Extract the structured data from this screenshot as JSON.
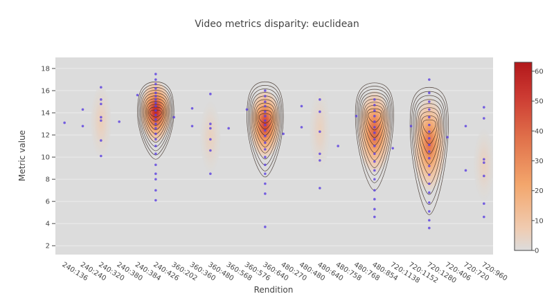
{
  "chart_data": {
    "type": "heatmap",
    "title": "Video metrics disparity: euclidean",
    "xlabel": "Rendition",
    "ylabel": "Metric value",
    "ylim": [
      1.2,
      19
    ],
    "yticks": [
      2,
      4,
      6,
      8,
      10,
      12,
      14,
      16,
      18
    ],
    "categories": [
      "240:136",
      "240:240",
      "240:320",
      "240:380",
      "240:384",
      "240:426",
      "360:202",
      "360:360",
      "360:480",
      "360:568",
      "360:576",
      "360:640",
      "480:270",
      "480:480",
      "480:640",
      "480:758",
      "480:768",
      "480:854",
      "720:1138",
      "720:1152",
      "720:1280",
      "720:406",
      "720:720",
      "720:960"
    ],
    "colorbar": {
      "min": 0,
      "max": 63,
      "ticks": [
        0,
        10,
        20,
        30,
        40,
        50,
        60
      ]
    },
    "points": [
      [
        0.5,
        13.1
      ],
      [
        1.5,
        12.8
      ],
      [
        1.5,
        14.3
      ],
      [
        2.5,
        10.1
      ],
      [
        2.5,
        11.5
      ],
      [
        2.5,
        13.3
      ],
      [
        2.5,
        13.6
      ],
      [
        2.5,
        14.8
      ],
      [
        2.5,
        15.2
      ],
      [
        2.5,
        16.3
      ],
      [
        3.5,
        13.2
      ],
      [
        4.5,
        15.6
      ],
      [
        5.5,
        6.1
      ],
      [
        5.5,
        7.0
      ],
      [
        5.5,
        8.0
      ],
      [
        5.5,
        8.5
      ],
      [
        5.5,
        9.3
      ],
      [
        5.5,
        10.3
      ],
      [
        5.5,
        11.0
      ],
      [
        5.5,
        11.6
      ],
      [
        5.5,
        12.1
      ],
      [
        5.5,
        12.6
      ],
      [
        5.5,
        13.0
      ],
      [
        5.5,
        13.4
      ],
      [
        5.5,
        13.8
      ],
      [
        5.5,
        14.2
      ],
      [
        5.5,
        14.6
      ],
      [
        5.5,
        14.9
      ],
      [
        5.5,
        15.2
      ],
      [
        5.5,
        15.5
      ],
      [
        5.5,
        15.8
      ],
      [
        5.5,
        16.2
      ],
      [
        5.5,
        16.6
      ],
      [
        5.5,
        17.0
      ],
      [
        5.5,
        17.5
      ],
      [
        6.5,
        13.6
      ],
      [
        7.5,
        12.8
      ],
      [
        7.5,
        14.4
      ],
      [
        8.5,
        8.5
      ],
      [
        8.5,
        10.6
      ],
      [
        8.5,
        11.6
      ],
      [
        8.5,
        12.6
      ],
      [
        8.5,
        13.0
      ],
      [
        8.5,
        15.7
      ],
      [
        9.5,
        12.6
      ],
      [
        10.5,
        14.3
      ],
      [
        11.5,
        3.7
      ],
      [
        11.5,
        6.7
      ],
      [
        11.5,
        7.6
      ],
      [
        11.5,
        8.5
      ],
      [
        11.5,
        9.3
      ],
      [
        11.5,
        10.0
      ],
      [
        11.5,
        10.7
      ],
      [
        11.5,
        11.3
      ],
      [
        11.5,
        11.9
      ],
      [
        11.5,
        12.4
      ],
      [
        11.5,
        12.9
      ],
      [
        11.5,
        13.3
      ],
      [
        11.5,
        13.7
      ],
      [
        11.5,
        14.1
      ],
      [
        11.5,
        14.6
      ],
      [
        11.5,
        15.0
      ],
      [
        11.5,
        15.5
      ],
      [
        11.5,
        16.0
      ],
      [
        12.5,
        12.1
      ],
      [
        13.5,
        12.7
      ],
      [
        13.5,
        14.6
      ],
      [
        14.5,
        7.2
      ],
      [
        14.5,
        9.7
      ],
      [
        14.5,
        10.3
      ],
      [
        14.5,
        12.3
      ],
      [
        14.5,
        14.1
      ],
      [
        14.5,
        15.2
      ],
      [
        15.5,
        11.0
      ],
      [
        16.5,
        13.7
      ],
      [
        17.5,
        4.6
      ],
      [
        17.5,
        5.3
      ],
      [
        17.5,
        6.2
      ],
      [
        17.5,
        7.0
      ],
      [
        17.5,
        8.0
      ],
      [
        17.5,
        8.8
      ],
      [
        17.5,
        9.6
      ],
      [
        17.5,
        10.3
      ],
      [
        17.5,
        11.0
      ],
      [
        17.5,
        11.6
      ],
      [
        17.5,
        12.2
      ],
      [
        17.5,
        12.7
      ],
      [
        17.5,
        13.2
      ],
      [
        17.5,
        13.7
      ],
      [
        17.5,
        14.2
      ],
      [
        17.5,
        14.7
      ],
      [
        17.5,
        15.2
      ],
      [
        18.5,
        10.8
      ],
      [
        19.5,
        12.8
      ],
      [
        20.5,
        3.6
      ],
      [
        20.5,
        4.3
      ],
      [
        20.5,
        5.1
      ],
      [
        20.5,
        5.9
      ],
      [
        20.5,
        6.8
      ],
      [
        20.5,
        7.6
      ],
      [
        20.5,
        8.4
      ],
      [
        20.5,
        9.2
      ],
      [
        20.5,
        9.9
      ],
      [
        20.5,
        10.5
      ],
      [
        20.5,
        11.1
      ],
      [
        20.5,
        11.7
      ],
      [
        20.5,
        12.3
      ],
      [
        20.5,
        12.9
      ],
      [
        20.5,
        13.6
      ],
      [
        20.5,
        14.3
      ],
      [
        20.5,
        15.0
      ],
      [
        20.5,
        15.8
      ],
      [
        20.5,
        17.0
      ],
      [
        21.5,
        11.8
      ],
      [
        22.5,
        8.8
      ],
      [
        22.5,
        12.8
      ],
      [
        23.5,
        4.6
      ],
      [
        23.5,
        5.8
      ],
      [
        23.5,
        8.3
      ],
      [
        23.5,
        9.5
      ],
      [
        23.5,
        9.8
      ],
      [
        23.5,
        13.5
      ],
      [
        23.5,
        14.5
      ]
    ],
    "density_blobs": [
      {
        "x": 2.5,
        "y": 13.2,
        "sx": 0.35,
        "sy": 2.0,
        "peak": 6
      },
      {
        "x": 5.5,
        "y": 14.1,
        "sx": 0.52,
        "sy": 1.7,
        "peak": 60
      },
      {
        "x": 8.5,
        "y": 11.8,
        "sx": 0.35,
        "sy": 2.0,
        "peak": 5
      },
      {
        "x": 11.5,
        "y": 13.0,
        "sx": 0.52,
        "sy": 1.9,
        "peak": 52
      },
      {
        "x": 14.5,
        "y": 12.5,
        "sx": 0.35,
        "sy": 2.2,
        "peak": 5
      },
      {
        "x": 17.5,
        "y": 12.3,
        "sx": 0.56,
        "sy": 2.3,
        "peak": 42
      },
      {
        "x": 20.5,
        "y": 11.2,
        "sx": 0.55,
        "sy": 2.6,
        "peak": 38
      },
      {
        "x": 23.5,
        "y": 9.3,
        "sx": 0.35,
        "sy": 2.0,
        "peak": 5
      }
    ],
    "contours": [
      {
        "x": 5.5,
        "yTop": 16.8,
        "yBot": 9.8,
        "yWide": 14.0,
        "hw": 1.0,
        "rings": 11
      },
      {
        "x": 11.5,
        "yTop": 16.8,
        "yBot": 8.2,
        "yWide": 13.6,
        "hw": 1.0,
        "rings": 10
      },
      {
        "x": 17.5,
        "yTop": 16.7,
        "yBot": 7.0,
        "yWide": 13.8,
        "hw": 1.05,
        "rings": 10
      },
      {
        "x": 20.5,
        "yTop": 16.3,
        "yBot": 4.8,
        "yWide": 13.0,
        "hw": 1.05,
        "rings": 9
      }
    ],
    "grid": true,
    "legend": "none"
  }
}
